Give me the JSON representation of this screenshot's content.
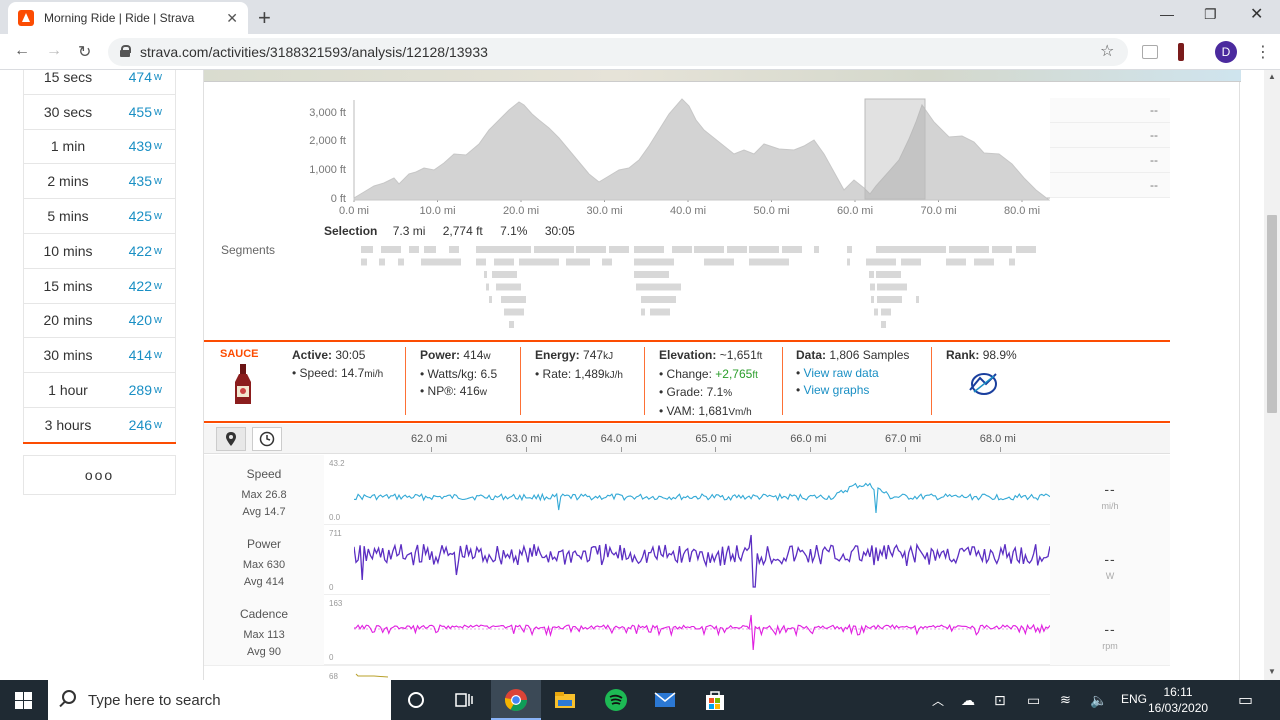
{
  "browser": {
    "tab_title": "Morning Ride | Ride | Strava",
    "url": "strava.com/activities/3188321593/analysis/12128/13933",
    "profile_initial": "D"
  },
  "power_curve": [
    {
      "duration": "15 secs",
      "value": "474",
      "unit": "w"
    },
    {
      "duration": "30 secs",
      "value": "455",
      "unit": "w"
    },
    {
      "duration": "1 min",
      "value": "439",
      "unit": "w"
    },
    {
      "duration": "2 mins",
      "value": "435",
      "unit": "w"
    },
    {
      "duration": "5 mins",
      "value": "425",
      "unit": "w"
    },
    {
      "duration": "10 mins",
      "value": "422",
      "unit": "w"
    },
    {
      "duration": "15 mins",
      "value": "422",
      "unit": "w"
    },
    {
      "duration": "20 mins",
      "value": "420",
      "unit": "w"
    },
    {
      "duration": "30 mins",
      "value": "414",
      "unit": "w"
    },
    {
      "duration": "1 hour",
      "value": "289",
      "unit": "w"
    },
    {
      "duration": "3 hours",
      "value": "246",
      "unit": "w"
    }
  ],
  "more_button": "ooo",
  "elevation": {
    "y_ticks": [
      "3,000 ft",
      "2,000 ft",
      "1,000 ft",
      "0 ft"
    ],
    "x_ticks": [
      "0.0 mi",
      "10.0 mi",
      "20.0 mi",
      "30.0 mi",
      "40.0 mi",
      "50.0 mi",
      "60.0 mi",
      "70.0 mi",
      "80.0 mi"
    ],
    "side_values": [
      "--",
      "--",
      "--",
      "--"
    ]
  },
  "selection": {
    "label": "Selection",
    "distance": "7.3 mi",
    "elevation": "2,774 ft",
    "grade": "7.1%",
    "time": "30:05"
  },
  "segments_label": "Segments",
  "stats": {
    "sauce": "SAUCE",
    "active_label": "Active:",
    "active": "30:05",
    "speed_label": "Speed:",
    "speed": "14.7",
    "speed_unit": "mi/h",
    "power_label": "Power:",
    "power": "414",
    "power_unit": "w",
    "wkg_label": "Watts/kg:",
    "wkg": "6.5",
    "np_label": "NP®:",
    "np": "416",
    "np_unit": "w",
    "energy_label": "Energy:",
    "energy": "747",
    "energy_unit": "kJ",
    "rate_label": "Rate:",
    "rate": "1,489",
    "rate_unit": "kJ/h",
    "elev_label": "Elevation:",
    "elev": "~1,651",
    "elev_unit": "ft",
    "change_label": "Change:",
    "change": "+2,765",
    "change_unit": "ft",
    "grade_label": "Grade:",
    "grade": "7.1",
    "grade_unit": "%",
    "vam_label": "VAM:",
    "vam": "1,681",
    "vam_unit": "Vm/h",
    "data_label": "Data:",
    "data": "1,806 Samples",
    "raw_link": "View raw data",
    "graphs_link": "View graphs",
    "rank_label": "Rank:",
    "rank": "98.9%"
  },
  "analysis_axis": [
    "62.0 mi",
    "63.0 mi",
    "64.0 mi",
    "65.0 mi",
    "66.0 mi",
    "67.0 mi",
    "68.0 mi"
  ],
  "streams": [
    {
      "name": "Speed",
      "max": "Max 26.8",
      "avg": "Avg 14.7",
      "ymax": "43.2",
      "ymin": "0.0",
      "value": "--",
      "unit": "mi/h",
      "color": "#33a9d6"
    },
    {
      "name": "Power",
      "max": "Max 630",
      "avg": "Avg 414",
      "ymax": "711",
      "ymin": "0",
      "value": "--",
      "unit": "W",
      "color": "#5b2ec2"
    },
    {
      "name": "Cadence",
      "max": "Max 113",
      "avg": "Avg 90",
      "ymax": "163",
      "ymin": "0",
      "value": "--",
      "unit": "rpm",
      "color": "#e01ee0"
    }
  ],
  "next_stream_ymax": "68",
  "taskbar": {
    "search_placeholder": "Type here to search",
    "lang": "ENG",
    "time": "16:11",
    "date": "16/03/2020"
  }
}
